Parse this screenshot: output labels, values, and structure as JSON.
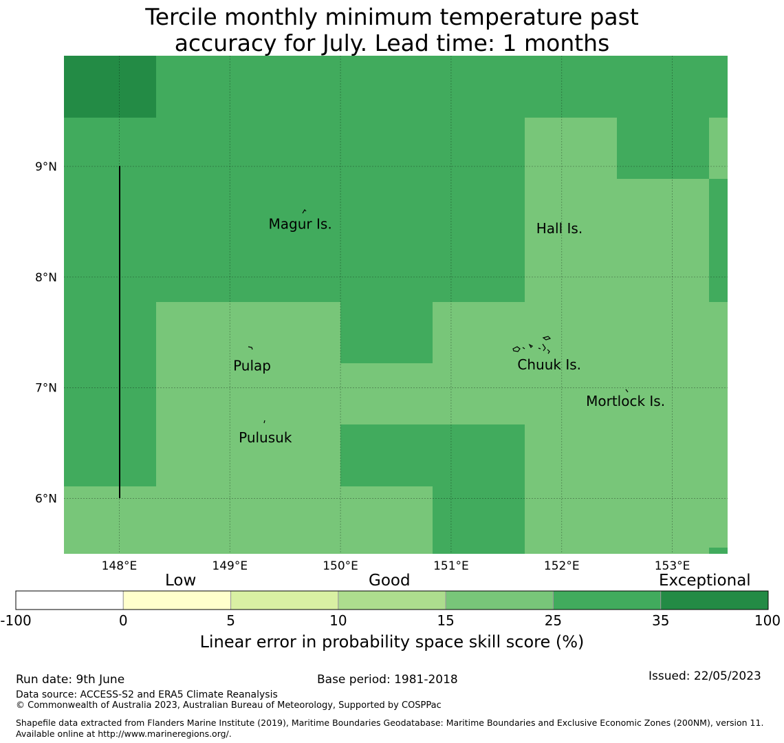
{
  "title_line1": "Tercile monthly minimum temperature past",
  "title_line2": "accuracy for July. Lead time: 1 months",
  "map": {
    "lon_range": [
      147.5,
      153.5
    ],
    "lat_range": [
      5.5,
      10.0
    ],
    "x_ticks": [
      "148°E",
      "149°E",
      "150°E",
      "151°E",
      "152°E",
      "153°E"
    ],
    "y_ticks": [
      "9°N",
      "8°N",
      "7°N",
      "6°N"
    ],
    "places": [
      {
        "name": "Magur Is.",
        "lon": 149.35,
        "lat": 8.48
      },
      {
        "name": "Hall Is.",
        "lon": 151.77,
        "lat": 8.44
      },
      {
        "name": "Pulap",
        "lon": 149.03,
        "lat": 7.2
      },
      {
        "name": "Chuuk Is.",
        "lon": 151.6,
        "lat": 7.21
      },
      {
        "name": "Mortlock Is.",
        "lon": 152.22,
        "lat": 6.88
      },
      {
        "name": "Pulusuk",
        "lon": 149.08,
        "lat": 6.55
      }
    ],
    "skill_categories": [
      {
        "range": "35 to 100",
        "color": "#238b45"
      },
      {
        "range": "25 to 35",
        "color": "#41ab5d"
      },
      {
        "range": "15 to 25",
        "color": "#78c679"
      }
    ]
  },
  "colorbar": {
    "ticks": [
      "-100",
      "0",
      "5",
      "10",
      "15",
      "25",
      "35",
      "100"
    ],
    "colors": [
      "#ffffff",
      "#ffffcc",
      "#d9f0a3",
      "#addd8e",
      "#78c679",
      "#41ab5d",
      "#238b45"
    ],
    "category_low": "Low",
    "category_good": "Good",
    "category_exceptional": "Exceptional",
    "title": "Linear error in probability space skill score (%)"
  },
  "footer": {
    "run_date": "Run date: 9th June",
    "base_period": "Base period: 1981-2018",
    "issued": "Issued: 22/05/2023",
    "data_source": "Data source: ACCESS-S2 and ERA5 Climate Reanalysis",
    "copyright": "© Commonwealth of Australia 2023, Australian Bureau of Meteorology, Supported by COSPPac",
    "shapefile": "Shapefile data extracted from Flanders Marine Institute (2019), Maritime Boundaries Geodatabase: Maritime Boundaries and Exclusive Economic Zones (200NM), version 11. Available online at http://www.marineregions.org/."
  }
}
